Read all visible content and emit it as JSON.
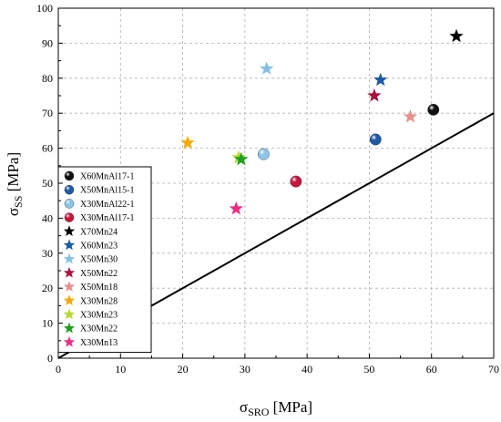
{
  "chart_data": {
    "type": "scatter",
    "xlabel": {
      "symbol": "σ",
      "sub": "SRO",
      "unit": " [MPa]"
    },
    "ylabel": {
      "symbol": "σ",
      "sub": "SS",
      "unit": " [MPa]"
    },
    "xlim": [
      0,
      70
    ],
    "ylim": [
      0,
      100
    ],
    "x_ticks": [
      0,
      10,
      20,
      30,
      40,
      50,
      60,
      70
    ],
    "y_ticks": [
      0,
      10,
      20,
      30,
      40,
      50,
      60,
      70,
      80,
      90,
      100
    ],
    "grid": true,
    "legend_position": "bottom-left",
    "series": [
      {
        "name": "X60MnAl17-1",
        "marker": "sphere",
        "color": "#111111",
        "points": [
          [
            60.3,
            71
          ]
        ]
      },
      {
        "name": "X50MnAl15-1",
        "marker": "sphere",
        "color": "#1f5aa6",
        "points": [
          [
            51.0,
            62.5
          ]
        ]
      },
      {
        "name": "X30MnAl22-1",
        "marker": "sphere",
        "color": "#8cc4ea",
        "points": [
          [
            33.0,
            58.3
          ]
        ]
      },
      {
        "name": "X30MnAl17-1",
        "marker": "sphere",
        "color": "#c8143c",
        "points": [
          [
            38.2,
            50.5
          ]
        ]
      },
      {
        "name": "X70Mn24",
        "marker": "star",
        "color": "#000000",
        "points": [
          [
            64.0,
            92.0
          ]
        ]
      },
      {
        "name": "X60Mn23",
        "marker": "star",
        "color": "#1c5aa6",
        "points": [
          [
            51.8,
            79.5
          ]
        ]
      },
      {
        "name": "X50Mn30",
        "marker": "star",
        "color": "#86c0e6",
        "points": [
          [
            33.5,
            82.7
          ]
        ]
      },
      {
        "name": "X50Mn22",
        "marker": "star",
        "color": "#a8123e",
        "points": [
          [
            50.8,
            75.0
          ]
        ]
      },
      {
        "name": "X50Mn18",
        "marker": "star",
        "color": "#e89090",
        "points": [
          [
            56.6,
            69.0
          ]
        ]
      },
      {
        "name": "X30Mn28",
        "marker": "star",
        "color": "#f5a800",
        "points": [
          [
            20.8,
            61.5
          ]
        ]
      },
      {
        "name": "X30Mn23",
        "marker": "star",
        "color": "#b6d92b",
        "points": [
          [
            29.0,
            57.3
          ]
        ]
      },
      {
        "name": "X30Mn22",
        "marker": "star",
        "color": "#1ea022",
        "points": [
          [
            29.4,
            56.8
          ]
        ]
      },
      {
        "name": "X30Mn13",
        "marker": "star",
        "color": "#ee2c82",
        "points": [
          [
            28.6,
            42.7
          ]
        ]
      }
    ],
    "reference_line": {
      "x": [
        0,
        70
      ],
      "y": [
        0,
        70
      ]
    }
  }
}
